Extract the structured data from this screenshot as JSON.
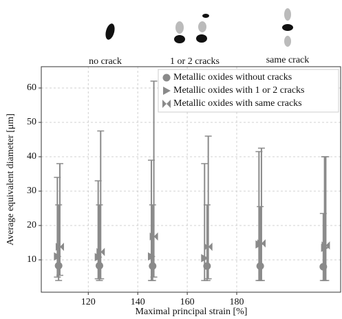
{
  "annotations": [
    "no crack",
    "1 or 2 cracks",
    "same crack"
  ],
  "chart_data": {
    "type": "errorbar",
    "x_label": "Maximal principal strain [%]",
    "y_label": "Average equivalent diameter [μm]",
    "xlim": [
      101,
      222
    ],
    "ylim": [
      0.6,
      66.2
    ],
    "xticks": [
      120,
      140,
      160,
      180
    ],
    "yticks": [
      10,
      20,
      30,
      40,
      50,
      60
    ],
    "grid": true,
    "legend": "upper right",
    "series": [
      {
        "name": "Metallic oxides without cracks",
        "marker": "circle",
        "color": "#8a8a8a",
        "x": [
          108,
          124.5,
          146,
          168,
          189.5,
          215
        ],
        "values": [
          8.3,
          8.3,
          8.2,
          8.2,
          8.2,
          8
        ],
        "low": [
          4,
          4,
          4,
          4,
          4,
          4
        ],
        "high": [
          26,
          26,
          26,
          26,
          25.5,
          23.5
        ]
      },
      {
        "name": "Metallic oxides with 1 or 2 cracks",
        "marker": "triangle-right",
        "color": "#8a8a8a",
        "x": [
          107.5,
          124,
          145.5,
          167,
          189,
          215.5
        ],
        "values": [
          11,
          10.8,
          11,
          10.5,
          14.5,
          13.5
        ],
        "low": [
          5,
          4.5,
          4,
          4,
          4,
          4
        ],
        "high": [
          34,
          33,
          39,
          38,
          41.5,
          40
        ]
      },
      {
        "name": "Metallic oxides with same cracks",
        "marker": "bowtie",
        "color": "#8a8a8a",
        "x": [
          108.5,
          125,
          146.5,
          168.5,
          190,
          216
        ],
        "values": [
          13.8,
          12.3,
          16.8,
          13.8,
          14.8,
          14.2
        ],
        "low": [
          5.5,
          4.5,
          5,
          4.5,
          4,
          4
        ],
        "high": [
          38,
          47.5,
          62,
          46,
          42.5,
          40
        ]
      }
    ]
  }
}
